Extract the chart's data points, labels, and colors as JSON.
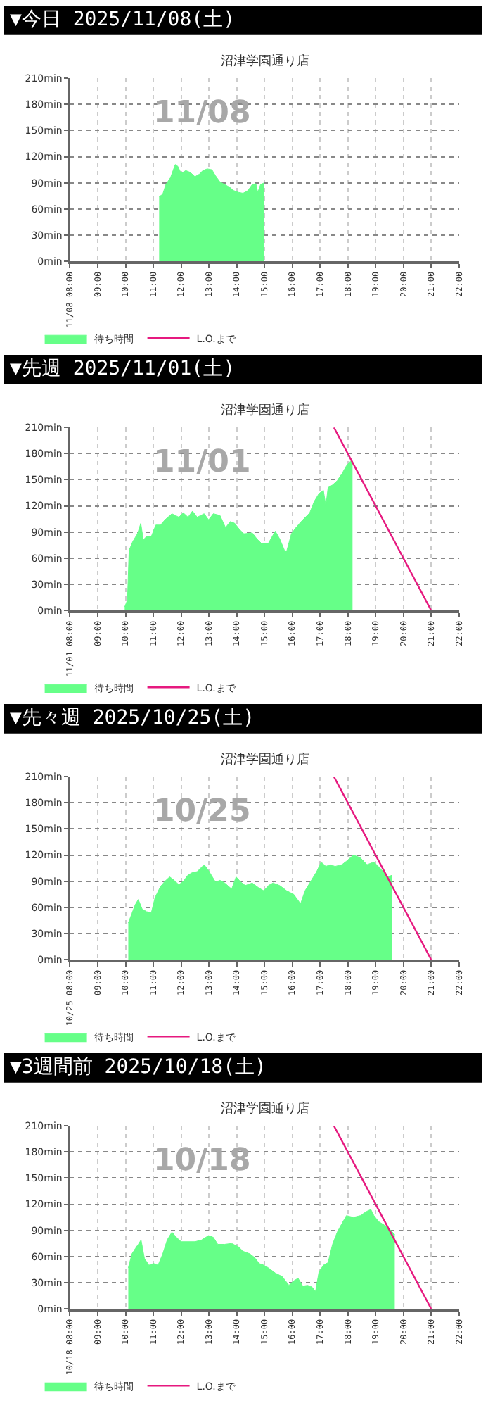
{
  "chart_data": [
    {
      "type": "area",
      "title": "▼今日 2025/11/08(土)",
      "subtitle": "沼津学園通り店",
      "annotations": [
        "11/08"
      ],
      "xlim": [
        8,
        22
      ],
      "xticks": [
        {
          "value": 8,
          "label": "11/08 08:00"
        },
        {
          "value": 9,
          "label": "09:00"
        },
        {
          "value": 10,
          "label": "10:00"
        },
        {
          "value": 11,
          "label": "11:00"
        },
        {
          "value": 12,
          "label": "12:00"
        },
        {
          "value": 13,
          "label": "13:00"
        },
        {
          "value": 14,
          "label": "14:00"
        },
        {
          "value": 15,
          "label": "15:00"
        },
        {
          "value": 16,
          "label": "16:00"
        },
        {
          "value": 17,
          "label": "17:00"
        },
        {
          "value": 18,
          "label": "18:00"
        },
        {
          "value": 19,
          "label": "19:00"
        },
        {
          "value": 20,
          "label": "20:00"
        },
        {
          "value": 21,
          "label": "21:00"
        },
        {
          "value": 22,
          "label": "22:00"
        }
      ],
      "ylim": [
        0,
        210
      ],
      "yticks": [
        {
          "value": 0,
          "label": "0min"
        },
        {
          "value": 30,
          "label": "30min"
        },
        {
          "value": 60,
          "label": "60min"
        },
        {
          "value": 90,
          "label": "90min"
        },
        {
          "value": 120,
          "label": "120min"
        },
        {
          "value": 150,
          "label": "150min"
        },
        {
          "value": 180,
          "label": "180min"
        },
        {
          "value": 210,
          "label": "210min"
        }
      ],
      "grid": true,
      "legend": "bottom left",
      "series": [
        {
          "name": "待ち時間",
          "color": "#66ff88",
          "x": [
            11.21,
            11.34,
            11.45,
            11.62,
            11.79,
            11.88,
            12.0,
            12.17,
            12.33,
            12.5,
            12.66,
            12.78,
            12.94,
            13.11,
            13.24,
            13.4,
            13.57,
            13.74,
            13.9,
            14.07,
            14.23,
            14.4,
            14.56,
            14.69,
            14.76,
            14.86,
            14.99
          ],
          "values": [
            74,
            77,
            88,
            96,
            111,
            109,
            101,
            104,
            102,
            97,
            100,
            104,
            106,
            105,
            98,
            91,
            88,
            85,
            81,
            79,
            78,
            81,
            88,
            89,
            79,
            88,
            90
          ]
        },
        {
          "name": "L.O.まで",
          "type": "line",
          "color": "#e6197f"
        }
      ]
    },
    {
      "type": "area",
      "title": "▼先週 2025/11/01(土)",
      "subtitle": "沼津学園通り店",
      "annotations": [
        "11/01"
      ],
      "xlim": [
        8,
        22
      ],
      "xticks": [
        {
          "value": 8,
          "label": "11/01 08:00"
        },
        {
          "value": 9,
          "label": "09:00"
        },
        {
          "value": 10,
          "label": "10:00"
        },
        {
          "value": 11,
          "label": "11:00"
        },
        {
          "value": 12,
          "label": "12:00"
        },
        {
          "value": 13,
          "label": "13:00"
        },
        {
          "value": 14,
          "label": "14:00"
        },
        {
          "value": 15,
          "label": "15:00"
        },
        {
          "value": 16,
          "label": "16:00"
        },
        {
          "value": 17,
          "label": "17:00"
        },
        {
          "value": 18,
          "label": "18:00"
        },
        {
          "value": 19,
          "label": "19:00"
        },
        {
          "value": 20,
          "label": "20:00"
        },
        {
          "value": 21,
          "label": "21:00"
        },
        {
          "value": 22,
          "label": "22:00"
        }
      ],
      "ylim": [
        0,
        210
      ],
      "yticks": [
        {
          "value": 0,
          "label": "0min"
        },
        {
          "value": 30,
          "label": "30min"
        },
        {
          "value": 60,
          "label": "60min"
        },
        {
          "value": 90,
          "label": "90min"
        },
        {
          "value": 120,
          "label": "120min"
        },
        {
          "value": 150,
          "label": "150min"
        },
        {
          "value": 180,
          "label": "180min"
        },
        {
          "value": 210,
          "label": "210min"
        }
      ],
      "grid": true,
      "legend": "bottom left",
      "series": [
        {
          "name": "待ち時間",
          "color": "#66ff88",
          "x": [
            9.97,
            10.07,
            10.13,
            10.26,
            10.43,
            10.55,
            10.64,
            10.76,
            10.93,
            11.09,
            11.26,
            11.42,
            11.67,
            11.92,
            12.08,
            12.25,
            12.41,
            12.58,
            12.83,
            12.99,
            13.16,
            13.4,
            13.6,
            13.77,
            13.93,
            14.1,
            14.26,
            14.56,
            14.73,
            14.89,
            15.14,
            15.39,
            15.55,
            15.72,
            15.8,
            15.97,
            16.13,
            16.38,
            16.63,
            16.79,
            16.96,
            17.12,
            17.21,
            17.29,
            17.45,
            17.62,
            17.79,
            17.95,
            18.12,
            18.17
          ],
          "values": [
            4,
            12,
            69,
            79,
            88,
            100,
            81,
            85,
            85,
            98,
            98,
            104,
            111,
            107,
            112,
            107,
            114,
            107,
            111,
            104,
            111,
            109,
            95,
            102,
            100,
            93,
            88,
            89,
            82,
            77,
            77,
            91,
            82,
            69,
            68,
            88,
            95,
            104,
            112,
            125,
            134,
            138,
            120,
            141,
            144,
            149,
            157,
            166,
            172,
            171
          ]
        },
        {
          "name": "L.O.まで",
          "type": "line",
          "color": "#e6197f",
          "x": [
            17.5,
            21
          ],
          "values": [
            210,
            0
          ]
        }
      ]
    },
    {
      "type": "area",
      "title": "▼先々週 2025/10/25(土)",
      "subtitle": "沼津学園通り店",
      "annotations": [
        "10/25"
      ],
      "xlim": [
        8,
        22
      ],
      "xticks": [
        {
          "value": 8,
          "label": "10/25 08:00"
        },
        {
          "value": 9,
          "label": "09:00"
        },
        {
          "value": 10,
          "label": "10:00"
        },
        {
          "value": 11,
          "label": "11:00"
        },
        {
          "value": 12,
          "label": "12:00"
        },
        {
          "value": 13,
          "label": "13:00"
        },
        {
          "value": 14,
          "label": "14:00"
        },
        {
          "value": 15,
          "label": "15:00"
        },
        {
          "value": 16,
          "label": "16:00"
        },
        {
          "value": 17,
          "label": "17:00"
        },
        {
          "value": 18,
          "label": "18:00"
        },
        {
          "value": 19,
          "label": "19:00"
        },
        {
          "value": 20,
          "label": "20:00"
        },
        {
          "value": 21,
          "label": "21:00"
        },
        {
          "value": 22,
          "label": "22:00"
        }
      ],
      "ylim": [
        0,
        210
      ],
      "yticks": [
        {
          "value": 0,
          "label": "0min"
        },
        {
          "value": 30,
          "label": "30min"
        },
        {
          "value": 60,
          "label": "60min"
        },
        {
          "value": 90,
          "label": "90min"
        },
        {
          "value": 120,
          "label": "120min"
        },
        {
          "value": 150,
          "label": "150min"
        },
        {
          "value": 180,
          "label": "180min"
        },
        {
          "value": 210,
          "label": "210min"
        }
      ],
      "grid": true,
      "legend": "bottom left",
      "series": [
        {
          "name": "待ち時間",
          "color": "#66ff88",
          "x": [
            10.1,
            10.23,
            10.35,
            10.46,
            10.6,
            10.76,
            10.93,
            11.06,
            11.26,
            11.42,
            11.59,
            11.75,
            11.92,
            12.08,
            12.25,
            12.41,
            12.58,
            12.83,
            12.99,
            13.24,
            13.4,
            13.57,
            13.82,
            13.98,
            14.15,
            14.31,
            14.56,
            14.81,
            14.98,
            15.14,
            15.31,
            15.55,
            15.8,
            16.05,
            16.3,
            16.46,
            16.63,
            16.88,
            17.04,
            17.21,
            17.37,
            17.54,
            17.79,
            17.95,
            18.2,
            18.45,
            18.69,
            18.94,
            19.19,
            19.44,
            19.6
          ],
          "values": [
            42,
            53,
            63,
            69,
            58,
            55,
            54,
            71,
            84,
            90,
            95,
            91,
            86,
            90,
            97,
            100,
            101,
            109,
            102,
            89,
            91,
            88,
            81,
            95,
            89,
            85,
            88,
            82,
            79,
            85,
            88,
            85,
            79,
            75,
            64,
            79,
            88,
            101,
            112,
            107,
            109,
            107,
            109,
            113,
            120,
            117,
            109,
            112,
            104,
            95,
            97
          ]
        },
        {
          "name": "L.O.まで",
          "type": "line",
          "color": "#e6197f",
          "x": [
            17.5,
            21
          ],
          "values": [
            210,
            0
          ]
        }
      ]
    },
    {
      "type": "area",
      "title": "▼3週間前 2025/10/18(土)",
      "subtitle": "沼津学園通り店",
      "annotations": [
        "10/18"
      ],
      "xlim": [
        8,
        22
      ],
      "xticks": [
        {
          "value": 8,
          "label": "10/18 08:00"
        },
        {
          "value": 9,
          "label": "09:00"
        },
        {
          "value": 10,
          "label": "10:00"
        },
        {
          "value": 11,
          "label": "11:00"
        },
        {
          "value": 12,
          "label": "12:00"
        },
        {
          "value": 13,
          "label": "13:00"
        },
        {
          "value": 14,
          "label": "14:00"
        },
        {
          "value": 15,
          "label": "15:00"
        },
        {
          "value": 16,
          "label": "16:00"
        },
        {
          "value": 17,
          "label": "17:00"
        },
        {
          "value": 18,
          "label": "18:00"
        },
        {
          "value": 19,
          "label": "19:00"
        },
        {
          "value": 20,
          "label": "20:00"
        },
        {
          "value": 21,
          "label": "21:00"
        },
        {
          "value": 22,
          "label": "22:00"
        }
      ],
      "ylim": [
        0,
        210
      ],
      "yticks": [
        {
          "value": 0,
          "label": "0min"
        },
        {
          "value": 30,
          "label": "30min"
        },
        {
          "value": 60,
          "label": "60min"
        },
        {
          "value": 90,
          "label": "90min"
        },
        {
          "value": 120,
          "label": "120min"
        },
        {
          "value": 150,
          "label": "150min"
        },
        {
          "value": 180,
          "label": "180min"
        },
        {
          "value": 210,
          "label": "210min"
        }
      ],
      "grid": true,
      "legend": "bottom left",
      "series": [
        {
          "name": "待ち時間",
          "color": "#66ff88",
          "x": [
            10.1,
            10.23,
            10.35,
            10.46,
            10.56,
            10.68,
            10.84,
            11.01,
            11.17,
            11.34,
            11.5,
            11.67,
            11.83,
            12.0,
            12.25,
            12.5,
            12.74,
            12.99,
            13.16,
            13.32,
            13.57,
            13.82,
            14.07,
            14.23,
            14.48,
            14.64,
            14.81,
            14.98,
            15.14,
            15.39,
            15.64,
            15.88,
            16.05,
            16.21,
            16.38,
            16.55,
            16.71,
            16.84,
            16.96,
            17.12,
            17.29,
            17.45,
            17.62,
            17.79,
            17.95,
            18.2,
            18.45,
            18.69,
            18.83,
            18.94,
            19.11,
            19.27,
            19.52,
            19.69
          ],
          "values": [
            47,
            63,
            69,
            74,
            79,
            58,
            50,
            52,
            50,
            63,
            79,
            88,
            82,
            77,
            77,
            77,
            79,
            84,
            82,
            74,
            74,
            75,
            71,
            66,
            63,
            59,
            52,
            50,
            47,
            41,
            37,
            27,
            32,
            35,
            26,
            27,
            25,
            20,
            42,
            50,
            53,
            74,
            88,
            98,
            107,
            105,
            107,
            112,
            114,
            107,
            100,
            97,
            91,
            85
          ]
        },
        {
          "name": "L.O.まで",
          "type": "line",
          "color": "#e6197f",
          "x": [
            17.5,
            21
          ],
          "values": [
            210,
            0
          ]
        }
      ]
    }
  ]
}
